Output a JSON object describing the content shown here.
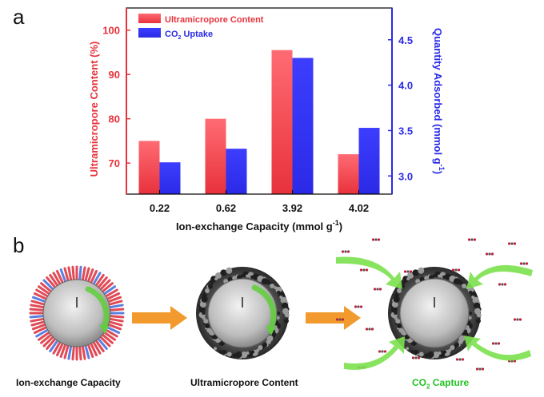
{
  "panel_a_label": "a",
  "panel_b_label": "b",
  "chart_data": {
    "type": "bar",
    "title": "",
    "xlabel_main": "Ion-exchange Capacity (mmol g",
    "xlabel_sup": "-1",
    "xlabel_close": ")",
    "ylabel_left": "Ultramicropore Content (%)",
    "ylabel_right_main": "Quantity Adsorbed (mmol g",
    "ylabel_right_sup": "-1",
    "ylabel_right_close": ")",
    "categories": [
      "0.22",
      "0.62",
      "3.92",
      "4.02"
    ],
    "ylim_left": [
      63,
      105
    ],
    "ylim_right": [
      2.8,
      4.85
    ],
    "left_ticks": [
      "70",
      "80",
      "90",
      "100"
    ],
    "right_ticks": [
      "3.0",
      "3.5",
      "4.0",
      "4.5"
    ],
    "series": [
      {
        "name": "Ultramicropore Content",
        "axis": "left",
        "color": "#e8323c",
        "values": [
          75,
          80,
          95.5,
          72
        ]
      },
      {
        "name_main": "CO",
        "name_sub": "2",
        "name_rest": " Uptake",
        "axis": "right",
        "color": "#2a2ae6",
        "values": [
          3.15,
          3.3,
          4.3,
          3.53
        ]
      }
    ],
    "legend_position": "top-left"
  },
  "schematic": {
    "caption_1": "Ion-exchange Capacity",
    "caption_2": "Ultramicropore Content",
    "caption_3_main": "CO",
    "caption_3_sub": "2",
    "caption_3_rest": " Capture",
    "caption_3_color": "#22c322",
    "arrow_color": "#f39a2e",
    "green_arrow_color": "#7be04e"
  }
}
